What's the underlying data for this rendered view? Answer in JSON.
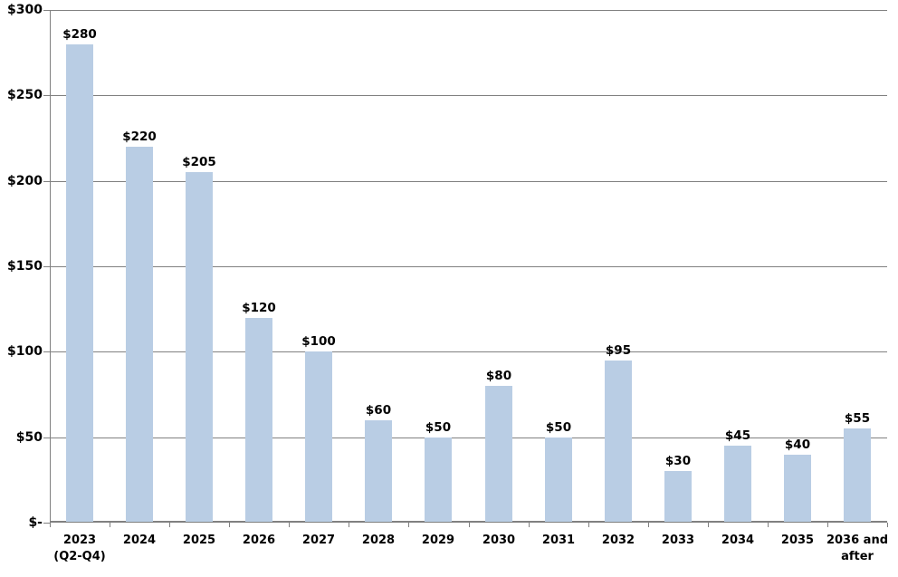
{
  "chart_data": {
    "type": "bar",
    "title": "",
    "xlabel": "",
    "ylabel": "",
    "categories": [
      "2023\n(Q2-Q4)",
      "2024",
      "2025",
      "2026",
      "2027",
      "2028",
      "2029",
      "2030",
      "2031",
      "2032",
      "2033",
      "2034",
      "2035",
      "2036 and\nafter"
    ],
    "values": [
      280,
      220,
      205,
      120,
      100,
      60,
      50,
      80,
      50,
      95,
      30,
      45,
      40,
      55
    ],
    "bar_labels": [
      "$280",
      "$220",
      "$205",
      "$120",
      "$100",
      "$60",
      "$50",
      "$80",
      "$50",
      "$95",
      "$30",
      "$45",
      "$40",
      "$55"
    ],
    "ylim": [
      0,
      300
    ],
    "y_tick_interval": 50,
    "y_ticks": [
      {
        "value": 0,
        "label": "$-"
      },
      {
        "value": 50,
        "label": "$50"
      },
      {
        "value": 100,
        "label": "$100"
      },
      {
        "value": 150,
        "label": "$150"
      },
      {
        "value": 200,
        "label": "$200"
      },
      {
        "value": 250,
        "label": "$250"
      },
      {
        "value": 300,
        "label": "$300"
      }
    ],
    "grid": true,
    "legend": false,
    "colors": {
      "bar_fill": "#B9CDE4",
      "gridline": "#808080",
      "axis_line": "#808080",
      "text": "#000000",
      "background": "#FFFFFF"
    }
  }
}
